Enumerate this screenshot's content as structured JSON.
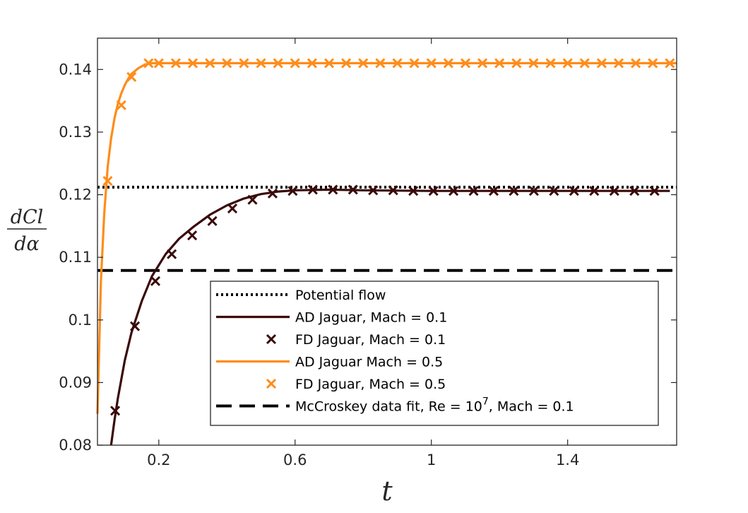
{
  "chart_data": {
    "type": "line",
    "xlabel": "t",
    "ylabel": {
      "numerator": "dCl",
      "denominator": "dα"
    },
    "xlim": [
      0.02,
      1.72
    ],
    "ylim": [
      0.08,
      0.145
    ],
    "xticks": [
      0.2,
      0.6,
      1,
      1.4
    ],
    "xtick_labels": [
      "0.2",
      "0.6",
      "1",
      "1.4"
    ],
    "yticks": [
      0.08,
      0.09,
      0.1,
      0.11,
      0.12,
      0.13,
      0.14
    ],
    "ytick_labels": [
      "0.08",
      "0.09",
      "0.1",
      "0.11",
      "0.12",
      "0.13",
      "0.14"
    ],
    "grid": false,
    "legend_position": "bottom-right",
    "colors": {
      "dark": "#3a0a0a",
      "orange": "#ff8c1a",
      "black": "#000000",
      "axis": "#262626"
    },
    "series": [
      {
        "name": "Potential flow",
        "style": "dotted",
        "color": "#000000",
        "x": [
          0.02,
          1.72
        ],
        "y": [
          0.1212,
          0.1212
        ]
      },
      {
        "name": "AD Jaguar, Mach = 0.1",
        "style": "solid",
        "color": "#3a0a0a",
        "x": [
          0.06,
          0.07,
          0.08,
          0.1,
          0.12,
          0.15,
          0.18,
          0.22,
          0.26,
          0.3,
          0.35,
          0.4,
          0.45,
          0.5,
          0.55,
          0.6,
          0.7,
          0.8,
          1.0,
          1.2,
          1.4,
          1.6,
          1.7
        ],
        "y": [
          0.08,
          0.084,
          0.0875,
          0.0935,
          0.098,
          0.103,
          0.107,
          0.1105,
          0.113,
          0.1148,
          0.1168,
          0.1183,
          0.1194,
          0.1201,
          0.1205,
          0.1207,
          0.1208,
          0.1207,
          0.1206,
          0.1206,
          0.1206,
          0.1206,
          0.1206
        ]
      },
      {
        "name": "FD Jaguar, Mach = 0.1",
        "style": "markers",
        "marker": "x",
        "color": "#3a0a0a",
        "x": [
          0.072,
          0.13,
          0.19,
          0.238,
          0.298,
          0.357,
          0.416,
          0.475,
          0.534,
          0.593,
          0.652,
          0.711,
          0.77,
          0.829,
          0.888,
          0.947,
          1.006,
          1.065,
          1.124,
          1.183,
          1.242,
          1.301,
          1.36,
          1.419,
          1.478,
          1.537,
          1.596,
          1.655
        ],
        "y": [
          0.0855,
          0.099,
          0.1062,
          0.1105,
          0.1135,
          0.1158,
          0.1178,
          0.1192,
          0.1202,
          0.1206,
          0.1208,
          0.1208,
          0.1208,
          0.1207,
          0.1207,
          0.1206,
          0.1206,
          0.1206,
          0.1206,
          0.1206,
          0.1206,
          0.1206,
          0.1206,
          0.1206,
          0.1206,
          0.1206,
          0.1206,
          0.1206
        ]
      },
      {
        "name": "AD Jaguar Mach = 0.5",
        "style": "solid",
        "color": "#ff8c1a",
        "x": [
          0.02,
          0.03,
          0.04,
          0.05,
          0.06,
          0.07,
          0.08,
          0.09,
          0.1,
          0.11,
          0.12,
          0.14,
          0.16,
          0.18,
          0.2,
          0.3,
          0.5,
          1.0,
          1.5,
          1.72
        ],
        "y": [
          0.085,
          0.106,
          0.117,
          0.1245,
          0.129,
          0.1322,
          0.1345,
          0.1362,
          0.1375,
          0.1385,
          0.1393,
          0.1402,
          0.1408,
          0.141,
          0.141,
          0.141,
          0.141,
          0.141,
          0.141,
          0.141
        ]
      },
      {
        "name": "FD Jaguar, Mach = 0.5",
        "style": "markers",
        "marker": "x",
        "color": "#ff8c1a",
        "x": [
          0.05,
          0.09,
          0.12,
          0.17,
          0.2,
          0.25,
          0.3,
          0.35,
          0.4,
          0.45,
          0.5,
          0.55,
          0.6,
          0.65,
          0.7,
          0.75,
          0.8,
          0.85,
          0.9,
          0.95,
          1.0,
          1.05,
          1.1,
          1.15,
          1.2,
          1.25,
          1.3,
          1.35,
          1.4,
          1.45,
          1.5,
          1.55,
          1.6,
          1.65,
          1.7
        ],
        "y": [
          0.1222,
          0.1343,
          0.1388,
          0.141,
          0.141,
          0.141,
          0.141,
          0.141,
          0.141,
          0.141,
          0.141,
          0.141,
          0.141,
          0.141,
          0.141,
          0.141,
          0.141,
          0.141,
          0.141,
          0.141,
          0.141,
          0.141,
          0.141,
          0.141,
          0.141,
          0.141,
          0.141,
          0.141,
          0.141,
          0.141,
          0.141,
          0.141,
          0.141,
          0.141,
          0.141
        ]
      },
      {
        "name": "McCroskey data fit, Re = 10",
        "name_sup": "7",
        "name_suffix": ", Mach = 0.1",
        "style": "dashed",
        "color": "#000000",
        "x": [
          0.02,
          1.72
        ],
        "y": [
          0.1079,
          0.1079
        ]
      }
    ]
  }
}
